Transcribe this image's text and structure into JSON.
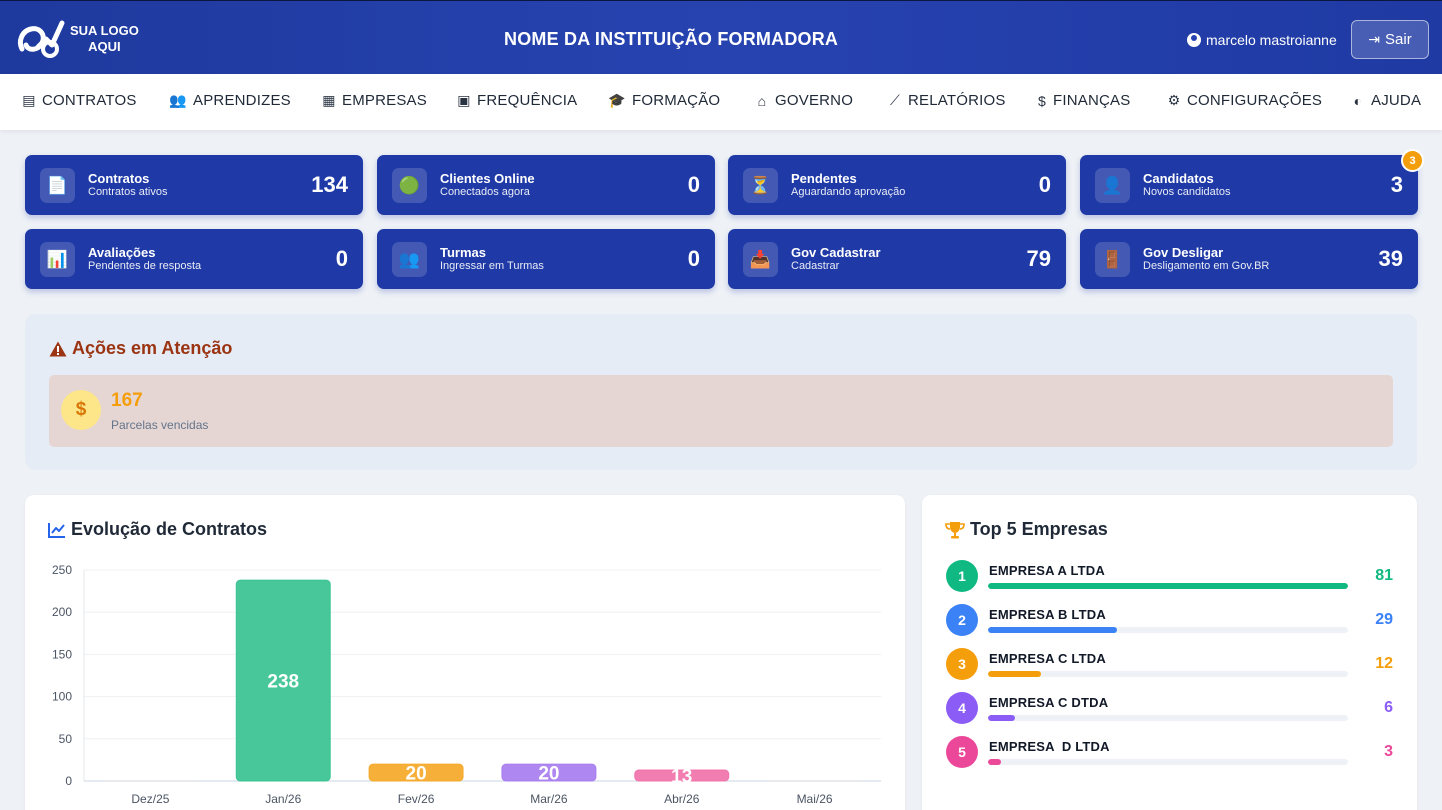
{
  "header": {
    "logo_line1": "SUA LOGO",
    "logo_line2": "AQUI",
    "institution": "NOME DA INSTITUIÇÃO FORMADORA",
    "user": "marcelo mastroianne",
    "logout_label": "Sair"
  },
  "nav": [
    {
      "label": "CONTRATOS",
      "icon": "file-icon"
    },
    {
      "label": "APRENDIZES",
      "icon": "users-icon"
    },
    {
      "label": "EMPRESAS",
      "icon": "building-icon"
    },
    {
      "label": "FREQUÊNCIA",
      "icon": "calendar-check-icon"
    },
    {
      "label": "FORMAÇÃO",
      "icon": "graduation-cap-icon"
    },
    {
      "label": "GOVERNO",
      "icon": "landmark-icon"
    },
    {
      "label": "RELATÓRIOS",
      "icon": "chart-line-icon"
    },
    {
      "label": "FINANÇAS",
      "icon": "dollar-icon"
    },
    {
      "label": "CONFIGURAÇÕES",
      "icon": "gear-icon"
    },
    {
      "label": "AJUDA",
      "icon": "brain-icon"
    }
  ],
  "stats": [
    {
      "title": "Contratos",
      "sub": "Contratos ativos",
      "value": "134",
      "icon": "document-icon"
    },
    {
      "title": "Clientes Online",
      "sub": "Conectados agora",
      "value": "0",
      "icon": "green-circle-icon"
    },
    {
      "title": "Pendentes",
      "sub": "Aguardando aprovação",
      "value": "0",
      "icon": "hourglass-icon"
    },
    {
      "title": "Candidatos",
      "sub": "Novos candidatos",
      "value": "3",
      "icon": "person-icon",
      "badge": "3"
    },
    {
      "title": "Avaliações",
      "sub": "Pendentes de resposta",
      "value": "0",
      "icon": "bar-chart-icon"
    },
    {
      "title": "Turmas",
      "sub": "Ingressar em Turmas",
      "value": "0",
      "icon": "people-icon"
    },
    {
      "title": "Gov Cadastrar",
      "sub": "Cadastrar",
      "value": "79",
      "icon": "inbox-tray-icon"
    },
    {
      "title": "Gov Desligar",
      "sub": "Desligamento em Gov.BR",
      "value": "39",
      "icon": "door-icon"
    }
  ],
  "attention": {
    "title": "Ações em Atenção",
    "item_icon": "$",
    "item_value": "167",
    "item_label": "Parcelas vencidas"
  },
  "evolution": {
    "title": "Evolução de Contratos"
  },
  "chart_data": {
    "type": "bar",
    "categories": [
      "Dez/25",
      "Jan/26",
      "Fev/26",
      "Mar/26",
      "Abr/26",
      "Mai/26"
    ],
    "values": [
      0,
      238,
      20,
      20,
      13,
      0
    ],
    "colors": [
      "#10b981",
      "#34c28f",
      "#f5a623",
      "#a67af0",
      "#ef6fa8",
      "#cccccc"
    ],
    "data_labels": [
      "",
      "238",
      "20",
      "20",
      "13",
      ""
    ],
    "yticks": [
      0,
      50,
      100,
      150,
      200,
      250
    ],
    "ylim": [
      0,
      250
    ],
    "title": "",
    "xlabel": "",
    "ylabel": ""
  },
  "top5": {
    "title": "Top 5 Empresas",
    "items": [
      {
        "rank": "1",
        "name": "EMPRESA A LTDA",
        "value": "81",
        "color": "#10b981"
      },
      {
        "rank": "2",
        "name": "EMPRESA B LTDA",
        "value": "29",
        "color": "#3b82f6"
      },
      {
        "rank": "3",
        "name": "EMPRESA C LTDA",
        "value": "12",
        "color": "#f59e0b"
      },
      {
        "rank": "4",
        "name": "EMPRESA C DTDA",
        "value": "6",
        "color": "#8b5cf6"
      },
      {
        "rank": "5",
        "name": "EMPRESA  D LTDA",
        "value": "3",
        "color": "#ec4899"
      }
    ]
  }
}
